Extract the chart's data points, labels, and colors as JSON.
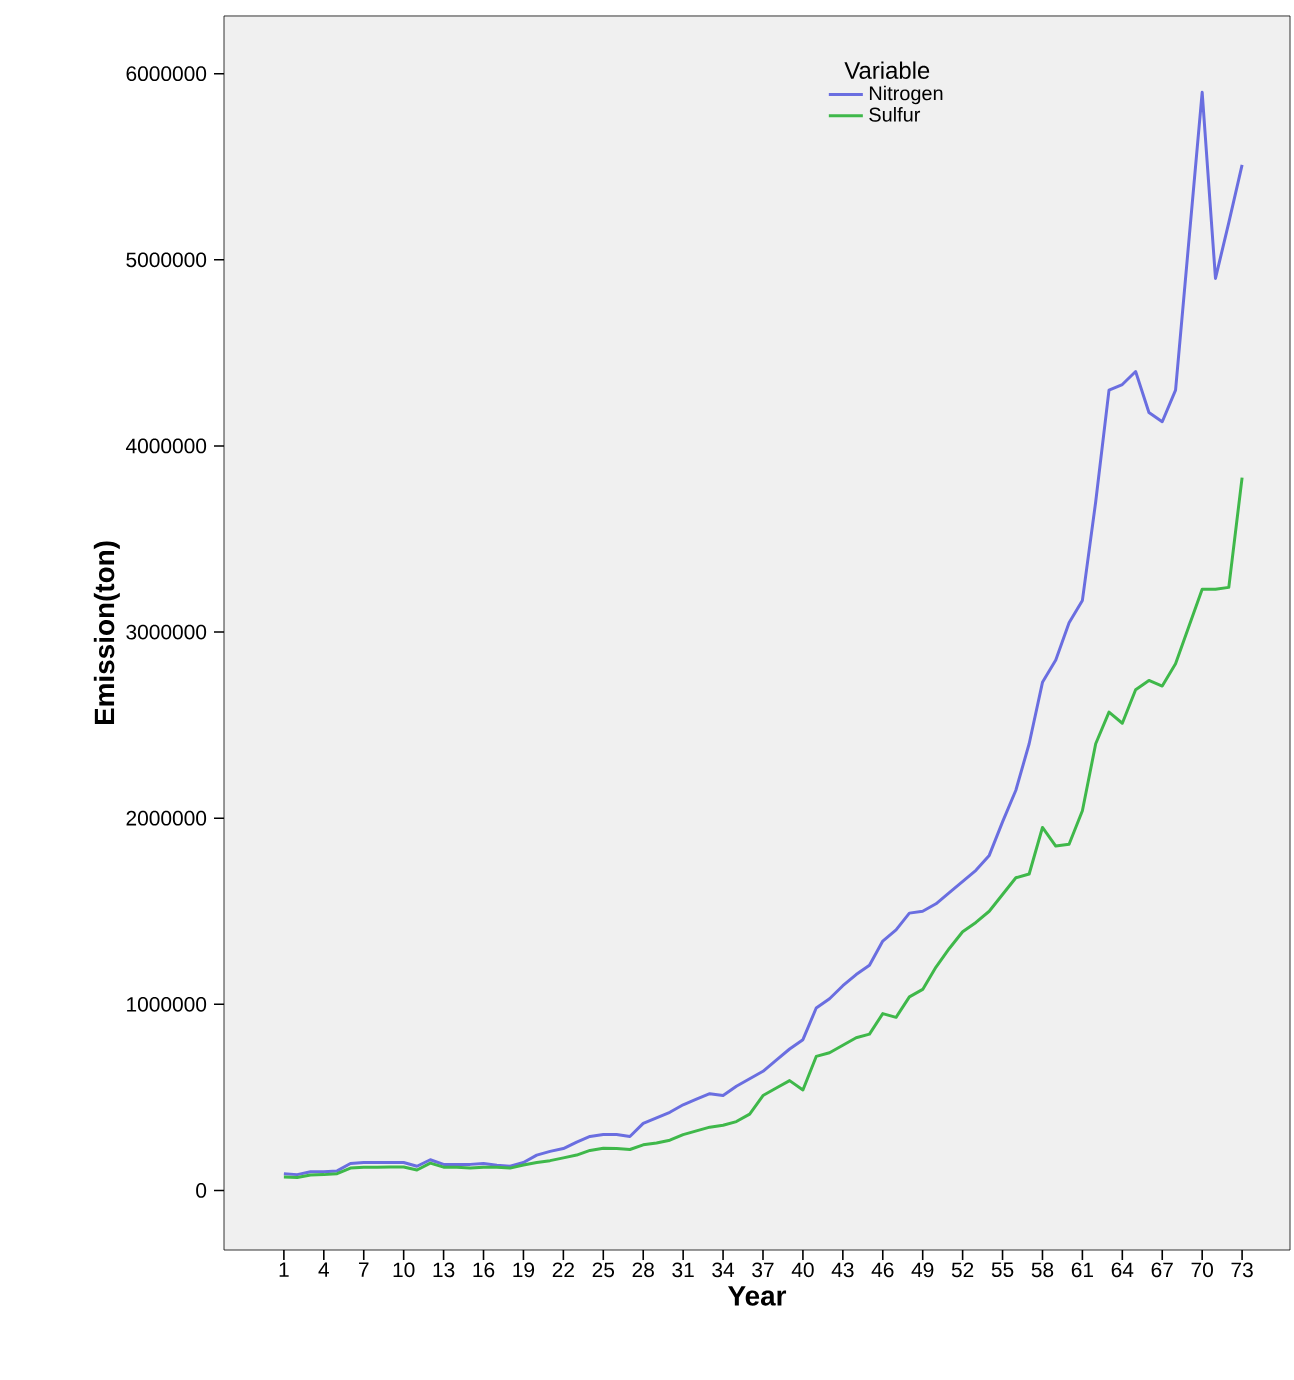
{
  "chart_data": {
    "type": "line",
    "xlabel": "Year",
    "ylabel": "Emission(ton)",
    "legend_title": "Variable",
    "x": [
      1,
      2,
      3,
      4,
      5,
      6,
      7,
      8,
      9,
      10,
      11,
      12,
      13,
      14,
      15,
      16,
      17,
      18,
      19,
      20,
      21,
      22,
      23,
      24,
      25,
      26,
      27,
      28,
      29,
      30,
      31,
      32,
      33,
      34,
      35,
      36,
      37,
      38,
      39,
      40,
      41,
      42,
      43,
      44,
      45,
      46,
      47,
      48,
      49,
      50,
      51,
      52,
      53,
      54,
      55,
      56,
      57,
      58,
      59,
      60,
      61,
      62,
      63,
      64,
      65,
      66,
      67,
      68,
      69,
      70,
      71,
      72,
      73
    ],
    "series": [
      {
        "name": "Nitrogen",
        "color": "#6a6ee0",
        "values": [
          90000,
          85000,
          100000,
          100000,
          105000,
          145000,
          150000,
          150000,
          150000,
          150000,
          130000,
          165000,
          140000,
          140000,
          140000,
          145000,
          135000,
          130000,
          150000,
          190000,
          210000,
          225000,
          260000,
          290000,
          300000,
          300000,
          290000,
          360000,
          390000,
          420000,
          460000,
          490000,
          520000,
          510000,
          560000,
          600000,
          640000,
          700000,
          760000,
          810000,
          980000,
          1030000,
          1100000,
          1160000,
          1210000,
          1340000,
          1400000,
          1490000,
          1500000,
          1540000,
          1600000,
          1660000,
          1720000,
          1800000,
          1980000,
          2150000,
          2400000,
          2730000,
          2850000,
          3050000,
          3170000,
          3700000,
          4300000,
          4330000,
          4400000,
          4180000,
          4130000,
          4300000,
          5100000,
          5900000,
          4900000,
          5200000,
          5510000
        ]
      },
      {
        "name": "Sulfur",
        "color": "#3fb84a",
        "values": [
          72000,
          70000,
          83000,
          85000,
          90000,
          120000,
          125000,
          125000,
          126000,
          126000,
          110000,
          147000,
          125000,
          125000,
          120000,
          125000,
          125000,
          120000,
          137000,
          150000,
          160000,
          175000,
          190000,
          215000,
          227000,
          225000,
          220000,
          245000,
          255000,
          270000,
          300000,
          320000,
          340000,
          350000,
          370000,
          410000,
          510000,
          550000,
          590000,
          540000,
          720000,
          740000,
          780000,
          820000,
          840000,
          950000,
          930000,
          1040000,
          1080000,
          1200000,
          1300000,
          1390000,
          1440000,
          1500000,
          1590000,
          1680000,
          1700000,
          1950000,
          1850000,
          1860000,
          2040000,
          2400000,
          2570000,
          2510000,
          2690000,
          2740000,
          2710000,
          2830000,
          3030000,
          3230000,
          3230000,
          3240000,
          3830000
        ]
      }
    ],
    "xlim": [
      -3.5,
      76.6
    ],
    "ylim": [
      -320000,
      6310000
    ],
    "xticks": [
      1,
      4,
      7,
      10,
      13,
      16,
      19,
      22,
      25,
      28,
      31,
      34,
      37,
      40,
      43,
      46,
      49,
      52,
      55,
      58,
      61,
      64,
      67,
      70,
      73
    ],
    "yticks": [
      0,
      1000000,
      2000000,
      3000000,
      4000000,
      5000000,
      6000000
    ],
    "grid": false,
    "legend": "top right",
    "marker": "none",
    "line_style": "solid"
  }
}
